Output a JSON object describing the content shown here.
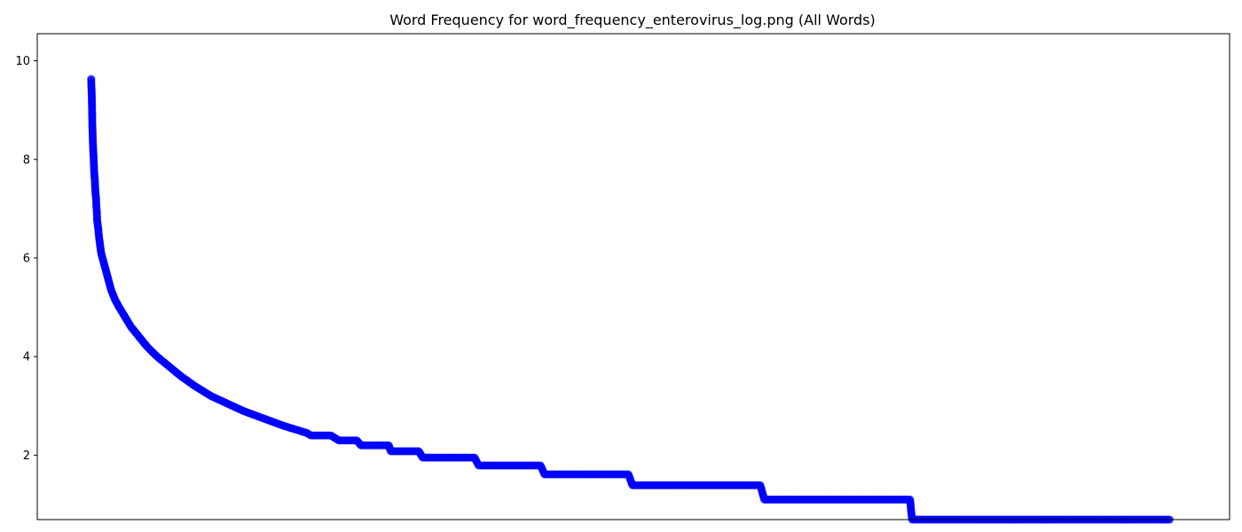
{
  "chart_data": {
    "type": "line",
    "title": "Word Frequency for word_frequency_enterovirus_log.png (All Words)",
    "xlabel": "",
    "ylabel": "",
    "x_ticks_shown": false,
    "ylim": [
      0.693,
      10.55
    ],
    "xlim": [
      -2700,
      57000
    ],
    "y_ticks": [
      2,
      4,
      6,
      8,
      10
    ],
    "grid": false,
    "legend": "none",
    "marker": "circle",
    "color": "#0000ff",
    "series": [
      {
        "points": [
          [
            0,
            9.63
          ],
          [
            10,
            9.46
          ],
          [
            20,
            9.43
          ],
          [
            40,
            9.1
          ],
          [
            60,
            8.65
          ],
          [
            80,
            8.4
          ],
          [
            100,
            8.2
          ],
          [
            120,
            8.05
          ],
          [
            140,
            7.85
          ],
          [
            160,
            7.68
          ],
          [
            180,
            7.6
          ],
          [
            200,
            7.42
          ],
          [
            220,
            7.3
          ],
          [
            240,
            7.22
          ],
          [
            260,
            7.05
          ],
          [
            280,
            6.95
          ],
          [
            300,
            6.75
          ],
          [
            320,
            6.7
          ],
          [
            350,
            6.6
          ],
          [
            400,
            6.4
          ],
          [
            450,
            6.25
          ],
          [
            500,
            6.1
          ],
          [
            600,
            5.95
          ],
          [
            700,
            5.8
          ],
          [
            800,
            5.65
          ],
          [
            900,
            5.5
          ],
          [
            1000,
            5.35
          ],
          [
            1200,
            5.15
          ],
          [
            1400,
            5.0
          ],
          [
            1700,
            4.8
          ],
          [
            2000,
            4.6
          ],
          [
            2400,
            4.4
          ],
          [
            2800,
            4.2
          ],
          [
            3300,
            4.0
          ],
          [
            3900,
            3.8
          ],
          [
            4500,
            3.6
          ],
          [
            5200,
            3.4
          ],
          [
            6000,
            3.2
          ],
          [
            6800,
            3.05
          ],
          [
            7600,
            2.9
          ],
          [
            8600,
            2.75
          ],
          [
            9600,
            2.6
          ],
          [
            10800,
            2.45
          ],
          [
            11000,
            2.4
          ],
          [
            12000,
            2.4
          ],
          [
            12400,
            2.3
          ],
          [
            13300,
            2.3
          ],
          [
            13500,
            2.2
          ],
          [
            14900,
            2.2
          ],
          [
            15000,
            2.08
          ],
          [
            16400,
            2.08
          ],
          [
            16600,
            1.95
          ],
          [
            19200,
            1.95
          ],
          [
            19400,
            1.79
          ],
          [
            22500,
            1.79
          ],
          [
            22700,
            1.61
          ],
          [
            26900,
            1.61
          ],
          [
            27100,
            1.39
          ],
          [
            33500,
            1.39
          ],
          [
            33700,
            1.1
          ],
          [
            41000,
            1.1
          ],
          [
            41100,
            0.693
          ],
          [
            54000,
            0.693
          ]
        ]
      }
    ]
  }
}
